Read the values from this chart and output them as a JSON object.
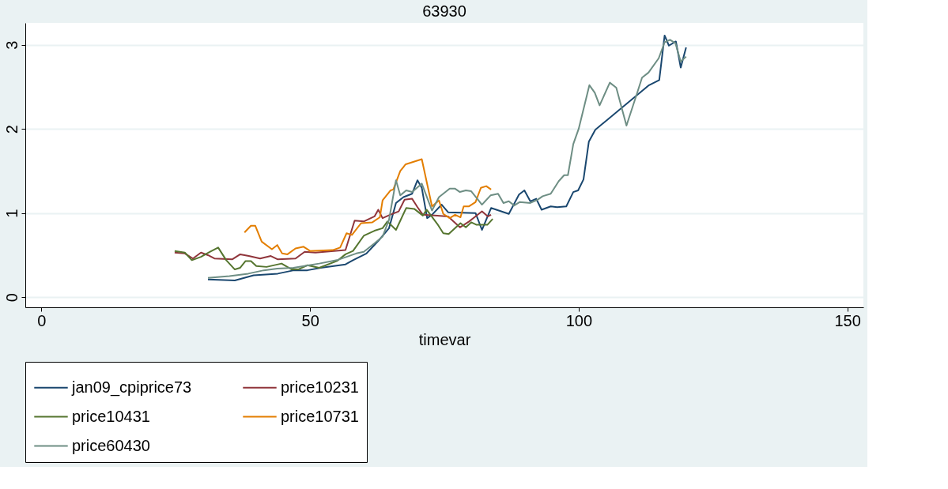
{
  "chart_data": {
    "type": "line",
    "title": "63930",
    "xlabel": "timevar",
    "xlim": [
      -3,
      153
    ],
    "xticks": [
      0,
      50,
      100,
      150
    ],
    "ylim": [
      -0.12,
      3.26
    ],
    "yticks": [
      0,
      1,
      2,
      3
    ],
    "grid": "y",
    "legend": "bottom",
    "line_style": "solid",
    "marker": "none",
    "series": [
      {
        "name": "jan09_cpiprice73",
        "color": "#1a476f",
        "x": [
          31,
          36,
          39.5,
          44,
          47,
          49.5,
          52,
          56.6,
          58,
          60.5,
          63,
          64.7,
          66,
          67.4,
          69,
          70,
          70.8,
          71.8,
          72.7,
          74.5,
          75.7,
          80.8,
          82,
          83.7,
          87,
          88.9,
          89.9,
          91,
          92.1,
          93.1,
          94.8,
          96,
          97.7,
          99,
          99.9,
          100.9,
          101.9,
          103.1,
          113.1,
          115,
          116,
          116.8,
          118.1,
          119,
          120
        ],
        "values": [
          0.21,
          0.2,
          0.26,
          0.28,
          0.32,
          0.32,
          0.35,
          0.39,
          0.44,
          0.52,
          0.69,
          0.82,
          1.12,
          1.19,
          1.23,
          1.39,
          1.3,
          0.94,
          0.98,
          1.1,
          1.01,
          1.0,
          0.8,
          1.06,
          0.99,
          1.22,
          1.27,
          1.14,
          1.17,
          1.04,
          1.08,
          1.07,
          1.08,
          1.25,
          1.27,
          1.4,
          1.85,
          1.99,
          2.52,
          2.58,
          3.11,
          2.99,
          3.04,
          2.73,
          2.97
        ]
      },
      {
        "name": "price10231",
        "color": "#90353b",
        "x": [
          24.8,
          26.7,
          28.2,
          29.7,
          31,
          32.2,
          35.5,
          37,
          38.6,
          40.7,
          42.7,
          44,
          47.3,
          49,
          51,
          56.6,
          58.3,
          60,
          62,
          62.7,
          63.5,
          64.9,
          66.5,
          67.6,
          69,
          70,
          71,
          73.7,
          75.7,
          77.9,
          79.6,
          80.8,
          82,
          83.1,
          83.7
        ],
        "values": [
          0.53,
          0.52,
          0.46,
          0.53,
          0.5,
          0.46,
          0.45,
          0.51,
          0.49,
          0.46,
          0.49,
          0.45,
          0.46,
          0.54,
          0.53,
          0.56,
          0.91,
          0.9,
          0.96,
          1.04,
          0.94,
          0.98,
          1.02,
          1.16,
          1.17,
          1.07,
          0.98,
          0.97,
          0.96,
          0.83,
          0.9,
          0.96,
          1.02,
          0.96,
          0.98
        ]
      },
      {
        "name": "price10431",
        "color": "#55752f",
        "x": [
          24.8,
          26.7,
          28,
          29.7,
          31.4,
          32.9,
          34.4,
          36,
          37,
          38,
          39,
          40,
          41.9,
          44.7,
          46.6,
          47.8,
          49.5,
          51.7,
          55,
          56.6,
          58,
          60,
          62,
          63.5,
          64.4,
          66,
          67.9,
          69.4,
          71,
          71.7,
          73.7,
          74.8,
          75.8,
          78,
          79,
          80,
          81,
          83,
          84
        ],
        "values": [
          0.55,
          0.53,
          0.44,
          0.48,
          0.54,
          0.59,
          0.44,
          0.33,
          0.35,
          0.43,
          0.43,
          0.37,
          0.36,
          0.4,
          0.33,
          0.33,
          0.38,
          0.35,
          0.43,
          0.51,
          0.55,
          0.73,
          0.79,
          0.82,
          0.9,
          0.8,
          1.06,
          1.05,
          0.97,
          1.04,
          0.87,
          0.76,
          0.75,
          0.88,
          0.83,
          0.89,
          0.86,
          0.86,
          0.93
        ]
      },
      {
        "name": "price10731",
        "color": "#e37e00",
        "x": [
          37.8,
          39,
          39.8,
          41,
          42.9,
          43.9,
          44.8,
          45.8,
          47.3,
          48.8,
          50,
          54.2,
          55.6,
          56.8,
          57.8,
          59.5,
          61.6,
          63,
          63.5,
          65,
          65.5,
          66.8,
          67.8,
          70.8,
          72.7,
          74,
          74.8,
          76,
          77,
          78,
          78.6,
          79.6,
          80.8,
          81.8,
          82.8,
          83.7
        ],
        "values": [
          0.77,
          0.85,
          0.85,
          0.66,
          0.57,
          0.62,
          0.52,
          0.51,
          0.58,
          0.6,
          0.55,
          0.56,
          0.59,
          0.76,
          0.74,
          0.88,
          0.89,
          0.95,
          1.15,
          1.27,
          1.28,
          1.5,
          1.58,
          1.64,
          1.08,
          1.15,
          0.99,
          0.94,
          0.98,
          0.95,
          1.08,
          1.08,
          1.13,
          1.3,
          1.32,
          1.28
        ]
      },
      {
        "name": "price60430",
        "color": "#6e8e84",
        "x": [
          31,
          35,
          38.5,
          41.4,
          43.9,
          46.9,
          49.8,
          51.7,
          55,
          58.6,
          60,
          62,
          63.5,
          64.7,
          66,
          66.8,
          67.9,
          69,
          70.8,
          72.7,
          74,
          76,
          77,
          77.9,
          79,
          80,
          82,
          83.6,
          85,
          86,
          87,
          88,
          89,
          91,
          92.4,
          93.3,
          94.8,
          96.3,
          97.3,
          98,
          99,
          100,
          102,
          103,
          103.9,
          105.8,
          107,
          108.9,
          110.8,
          111.8,
          113,
          114.9,
          116,
          117,
          118,
          119,
          120
        ],
        "values": [
          0.23,
          0.25,
          0.28,
          0.32,
          0.34,
          0.35,
          0.38,
          0.4,
          0.44,
          0.52,
          0.54,
          0.64,
          0.72,
          0.92,
          1.39,
          1.21,
          1.27,
          1.25,
          1.35,
          1.03,
          1.19,
          1.29,
          1.29,
          1.25,
          1.27,
          1.26,
          1.1,
          1.21,
          1.23,
          1.12,
          1.14,
          1.09,
          1.13,
          1.12,
          1.16,
          1.2,
          1.23,
          1.38,
          1.45,
          1.45,
          1.82,
          2.0,
          2.52,
          2.43,
          2.28,
          2.55,
          2.49,
          2.04,
          2.41,
          2.61,
          2.67,
          2.84,
          3.03,
          3.06,
          3.02,
          2.8,
          2.86
        ]
      }
    ]
  }
}
